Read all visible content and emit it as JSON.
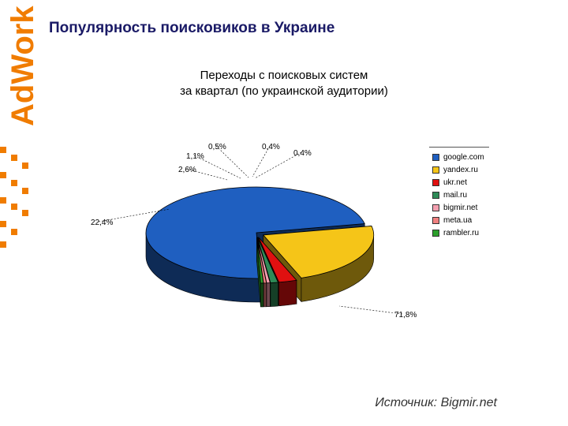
{
  "logo": {
    "text": "AdWork",
    "icon": "adwork-logo"
  },
  "page": {
    "title": "Популярность поисковиков в Украине",
    "source": "Источник: Bigmir.net"
  },
  "chart_data": {
    "type": "pie",
    "title_line1": "Переходы с поисковых систем",
    "title_line2": "за квартал (по украинской аудитории)",
    "legend_position": "right",
    "slices": [
      {
        "name": "google.com",
        "value": 71.8,
        "label": "71,8%",
        "color": "#1f5fc0"
      },
      {
        "name": "yandex.ru",
        "value": 22.4,
        "label": "22,4%",
        "color": "#f5c518"
      },
      {
        "name": "ukr.net",
        "value": 2.6,
        "label": "2,6%",
        "color": "#e01010"
      },
      {
        "name": "mail.ru",
        "value": 1.1,
        "label": "1,1%",
        "color": "#2e8b57"
      },
      {
        "name": "bigmir.net",
        "value": 0.5,
        "label": "0,5%",
        "color": "#f4a0b0"
      },
      {
        "name": "meta.ua",
        "value": 0.4,
        "label": "0,4%",
        "color": "#f08080"
      },
      {
        "name": "rambler.ru",
        "value": 0.4,
        "label": "0,4%",
        "color": "#2ca02c"
      }
    ]
  }
}
